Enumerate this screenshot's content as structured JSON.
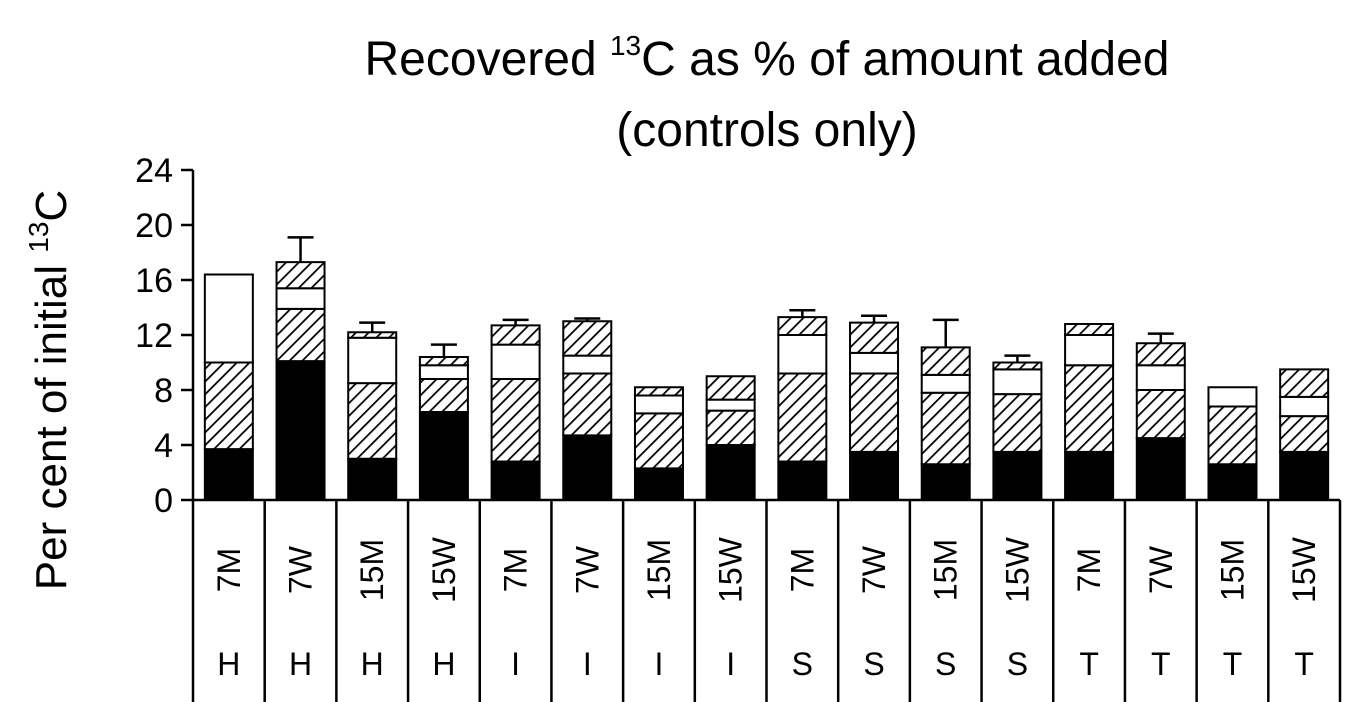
{
  "chart_data": {
    "type": "bar",
    "stacked": true,
    "title": {
      "line1_pre": "Recovered ",
      "line1_sup": "13",
      "line1_post": "C as % of amount added",
      "line2": "(controls only)"
    },
    "ylabel": {
      "pre": "Per cent of initial ",
      "sup": "13",
      "post": "C"
    },
    "ylim": [
      0,
      24
    ],
    "yticks": [
      "0",
      "4",
      "8",
      "12",
      "16",
      "20",
      "24"
    ],
    "grid": false,
    "categories": [
      "7M",
      "7W",
      "15M",
      "15W",
      "7M",
      "7W",
      "15M",
      "15W",
      "7M",
      "7W",
      "15M",
      "15W",
      "7M",
      "7W",
      "15M",
      "15W"
    ],
    "groups": [
      "H",
      "H",
      "H",
      "H",
      "I",
      "I",
      "I",
      "I",
      "S",
      "S",
      "S",
      "S",
      "T",
      "T",
      "T",
      "T"
    ],
    "series": [
      {
        "fill": "solid",
        "values": [
          3.7,
          10.1,
          3.0,
          6.4,
          2.8,
          4.7,
          2.3,
          4.0,
          2.8,
          3.5,
          2.6,
          3.5,
          3.5,
          4.5,
          2.6,
          3.5
        ]
      },
      {
        "fill": "hatch",
        "values": [
          6.3,
          3.8,
          5.5,
          2.4,
          6.0,
          4.5,
          4.0,
          2.5,
          6.4,
          5.7,
          5.2,
          4.2,
          6.3,
          3.5,
          4.2,
          2.6
        ]
      },
      {
        "fill": "open",
        "values": [
          6.4,
          1.5,
          3.3,
          1.0,
          2.5,
          1.3,
          1.3,
          0.8,
          2.8,
          1.5,
          1.3,
          1.8,
          2.2,
          1.8,
          1.4,
          1.4
        ]
      },
      {
        "fill": "hatch",
        "values": [
          0.0,
          1.9,
          0.4,
          0.6,
          1.4,
          2.5,
          0.6,
          1.7,
          1.3,
          2.2,
          2.0,
          0.5,
          0.8,
          1.6,
          0.0,
          2.0
        ]
      }
    ],
    "error_bars": [
      null,
      1.8,
      0.7,
      0.9,
      0.4,
      0.2,
      0.0,
      0.0,
      0.5,
      0.5,
      2.0,
      0.5,
      0.0,
      0.7,
      0.0,
      0.0
    ],
    "colors": {
      "solid": "#000000",
      "open": "#ffffff",
      "stroke": "#000000"
    }
  }
}
